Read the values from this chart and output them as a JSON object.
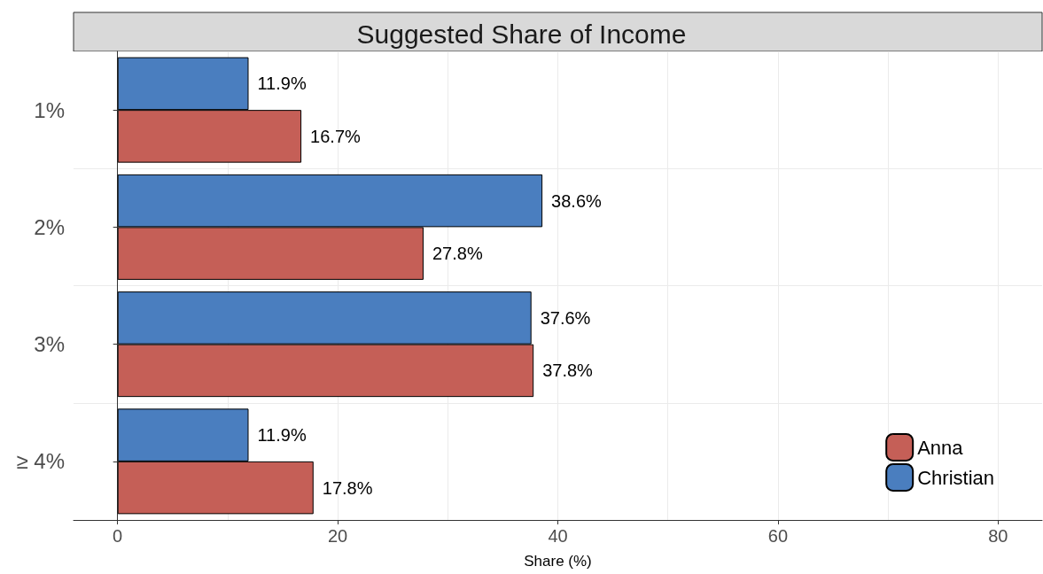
{
  "chart_data": {
    "type": "bar",
    "orientation": "horizontal",
    "title": "Suggested Share of Income",
    "xlabel": "Share (%)",
    "categories": [
      "1%",
      "2%",
      "3%",
      "≥ 4%"
    ],
    "series": [
      {
        "name": "Christian",
        "color": "#4a7ebf",
        "values": [
          11.9,
          38.6,
          37.6,
          11.9
        ],
        "value_labels": [
          "11.9%",
          "38.6%",
          "37.6%",
          "11.9%"
        ]
      },
      {
        "name": "Anna",
        "color": "#c55f57",
        "values": [
          16.7,
          27.8,
          37.8,
          17.8
        ],
        "value_labels": [
          "16.7%",
          "27.8%",
          "37.8%",
          "17.8%"
        ]
      }
    ],
    "xlim": [
      -4,
      84
    ],
    "xticks": [
      0,
      {
        "value": 10,
        "label": null
      },
      20,
      {
        "value": 30,
        "label": null
      },
      40,
      {
        "value": 50,
        "label": null
      },
      60,
      {
        "value": 70,
        "label": null
      },
      80
    ],
    "grid": true,
    "legend": "bottom right"
  }
}
